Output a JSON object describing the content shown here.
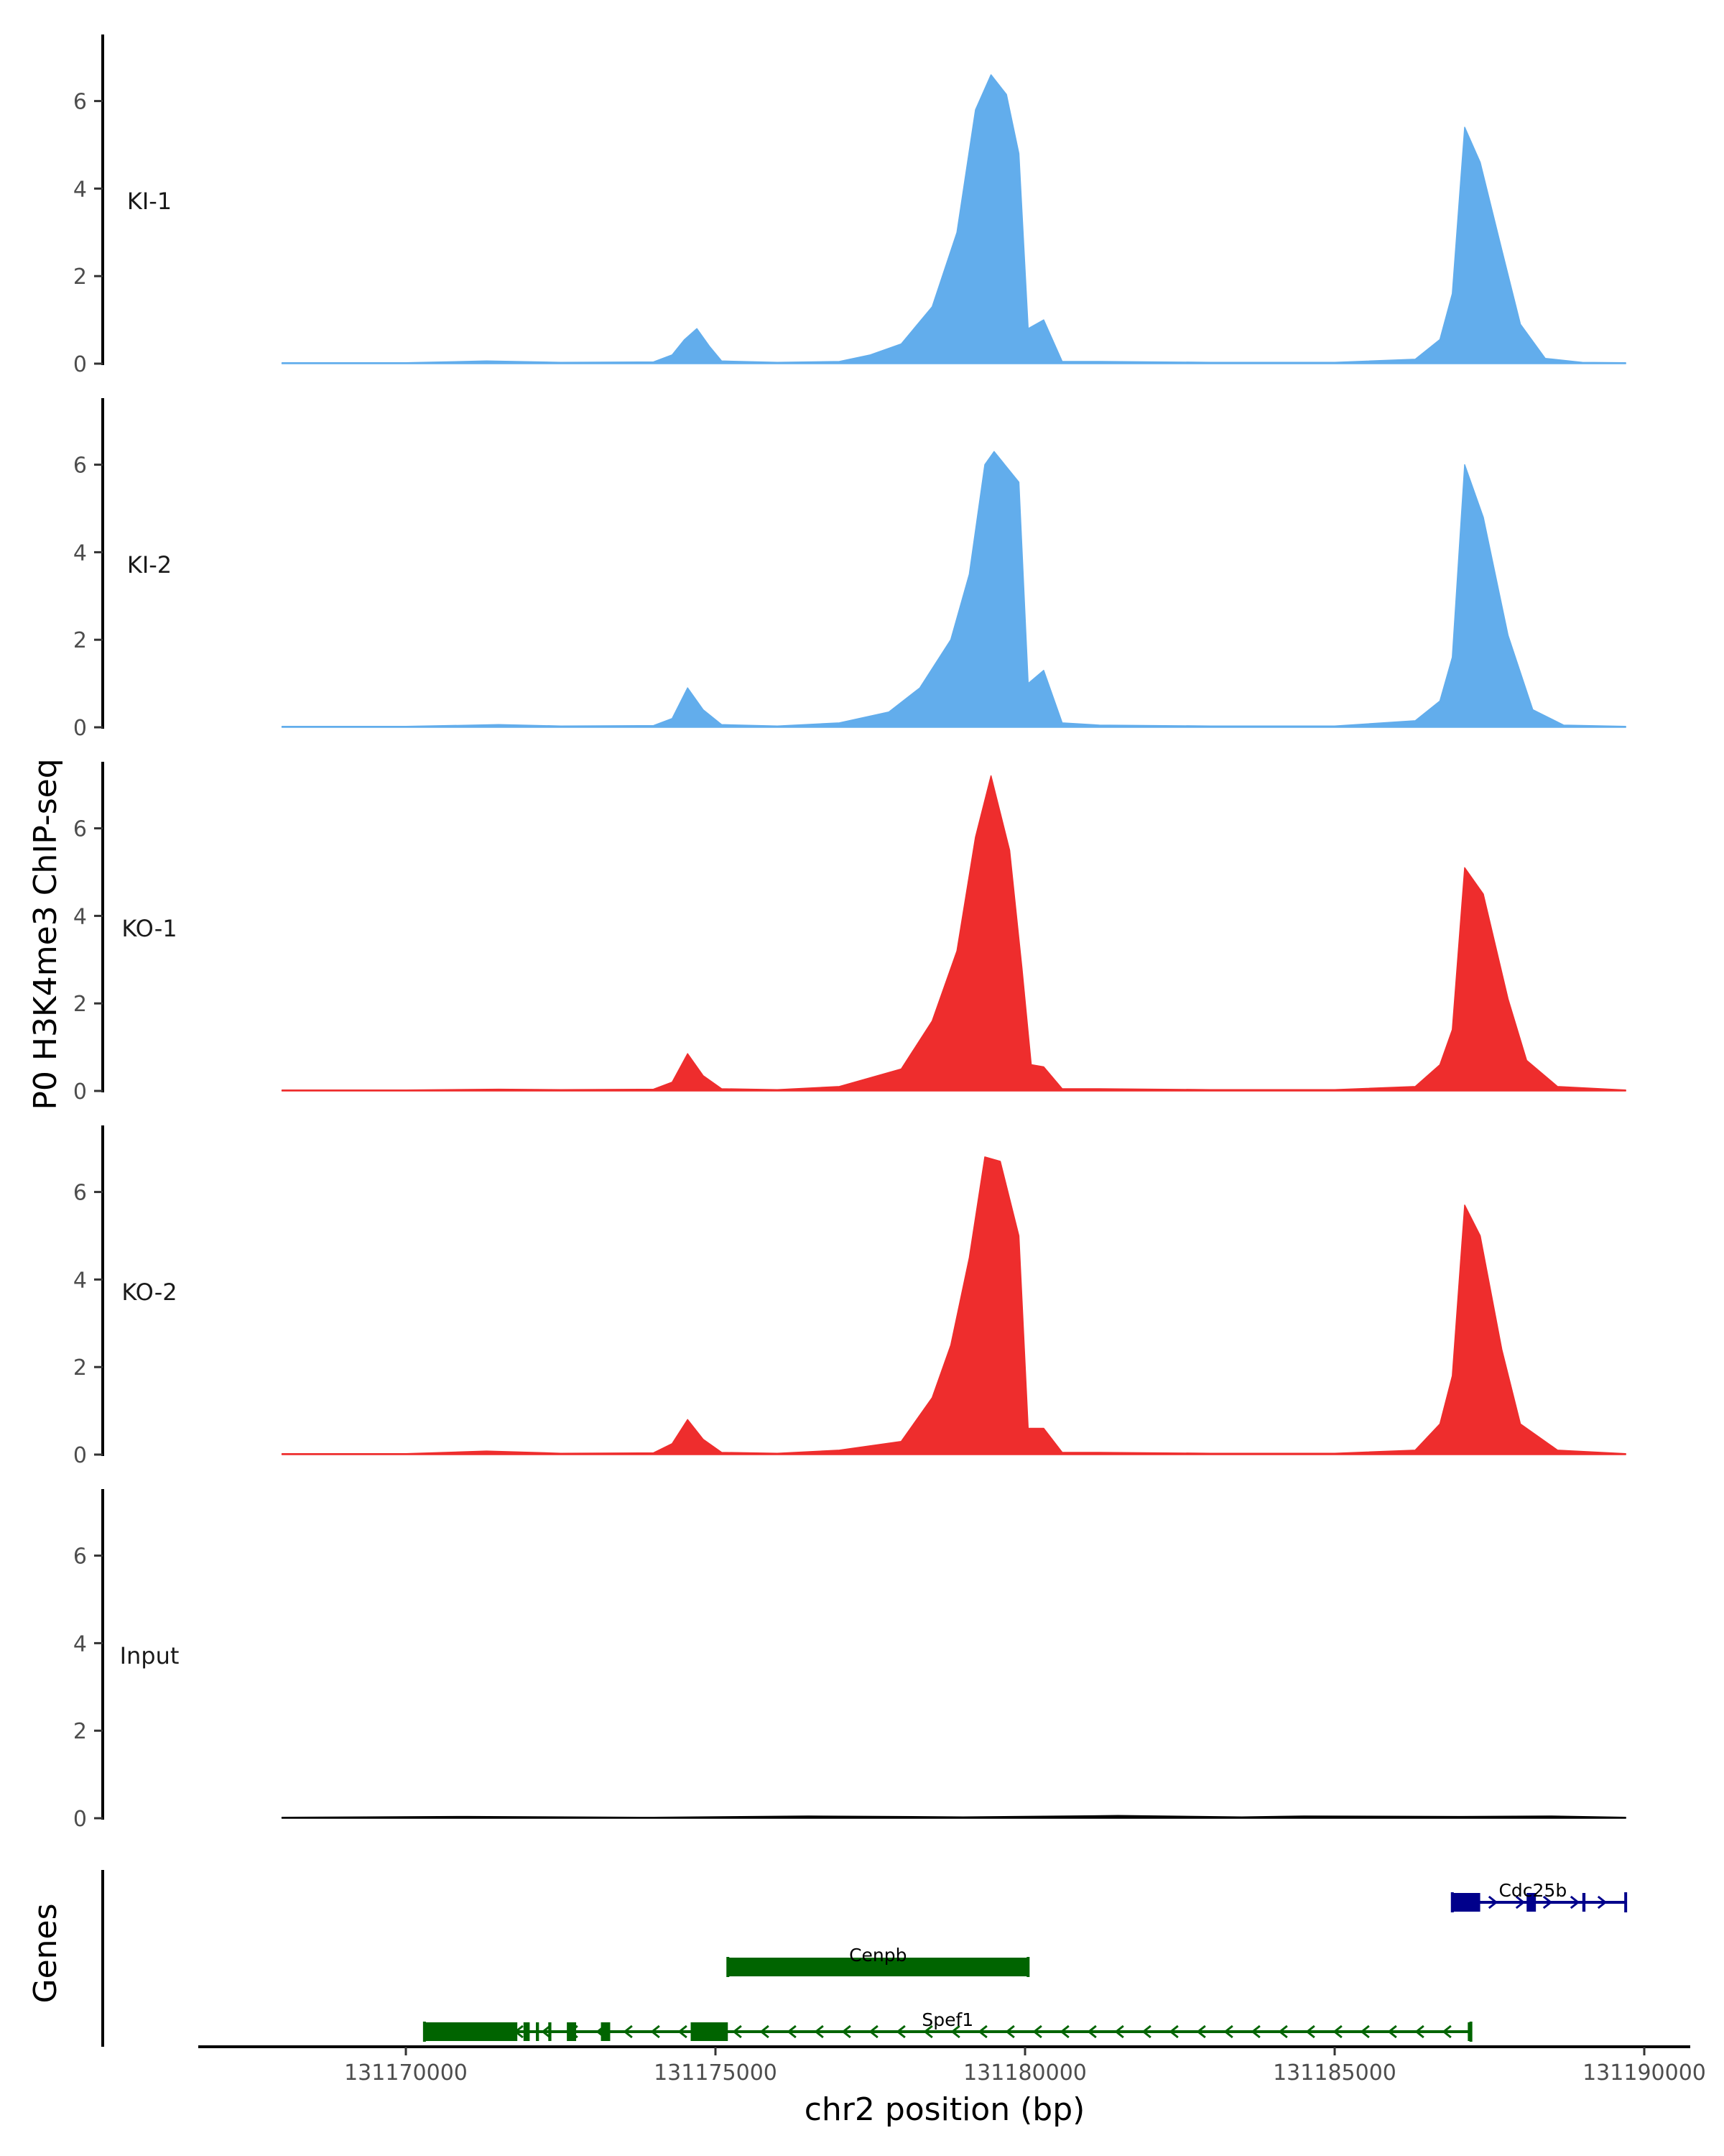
{
  "chart_data": {
    "type": "area",
    "title": "",
    "ylabel": "P0 H3K4me3 ChIP-seq",
    "xlabel": "chr2 position (bp)",
    "genes_label": "Genes",
    "xlim": [
      131166500,
      131190500
    ],
    "ylim": [
      0,
      7.6
    ],
    "yticks": [
      0,
      2,
      4,
      6
    ],
    "xticks": [
      131170000,
      131175000,
      131180000,
      131185000,
      131190000
    ],
    "tracks": [
      {
        "name": "KI-1",
        "color": "#62ADEC",
        "points": [
          [
            131168000,
            0.02
          ],
          [
            131170000,
            0.02
          ],
          [
            131171300,
            0.06
          ],
          [
            131172500,
            0.03
          ],
          [
            131174000,
            0.04
          ],
          [
            131174300,
            0.2
          ],
          [
            131174500,
            0.55
          ],
          [
            131174700,
            0.8
          ],
          [
            131174900,
            0.4
          ],
          [
            131175100,
            0.06
          ],
          [
            131176000,
            0.03
          ],
          [
            131177000,
            0.05
          ],
          [
            131177500,
            0.2
          ],
          [
            131178000,
            0.45
          ],
          [
            131178500,
            1.3
          ],
          [
            131178900,
            3.0
          ],
          [
            131179200,
            5.8
          ],
          [
            131179450,
            6.6
          ],
          [
            131179700,
            6.15
          ],
          [
            131179900,
            4.8
          ],
          [
            131180050,
            0.8
          ],
          [
            131180300,
            1.0
          ],
          [
            131180600,
            0.05
          ],
          [
            131181200,
            0.05
          ],
          [
            131183000,
            0.03
          ],
          [
            131185000,
            0.03
          ],
          [
            131186300,
            0.1
          ],
          [
            131186700,
            0.55
          ],
          [
            131186900,
            1.6
          ],
          [
            131187100,
            5.4
          ],
          [
            131187350,
            4.6
          ],
          [
            131187700,
            2.6
          ],
          [
            131188000,
            0.9
          ],
          [
            131188400,
            0.12
          ],
          [
            131189000,
            0.03
          ],
          [
            131189700,
            0.02
          ]
        ]
      },
      {
        "name": "KI-2",
        "color": "#62ADEC",
        "points": [
          [
            131168000,
            0.02
          ],
          [
            131170000,
            0.02
          ],
          [
            131171500,
            0.06
          ],
          [
            131172500,
            0.03
          ],
          [
            131174000,
            0.04
          ],
          [
            131174300,
            0.2
          ],
          [
            131174550,
            0.9
          ],
          [
            131174800,
            0.4
          ],
          [
            131175100,
            0.06
          ],
          [
            131176000,
            0.03
          ],
          [
            131177000,
            0.1
          ],
          [
            131177800,
            0.35
          ],
          [
            131178300,
            0.9
          ],
          [
            131178800,
            2.0
          ],
          [
            131179100,
            3.5
          ],
          [
            131179350,
            6.0
          ],
          [
            131179500,
            6.3
          ],
          [
            131179900,
            5.6
          ],
          [
            131180050,
            1.0
          ],
          [
            131180300,
            1.3
          ],
          [
            131180600,
            0.1
          ],
          [
            131181200,
            0.05
          ],
          [
            131183000,
            0.03
          ],
          [
            131185000,
            0.03
          ],
          [
            131186300,
            0.15
          ],
          [
            131186700,
            0.6
          ],
          [
            131186900,
            1.6
          ],
          [
            131187100,
            6.0
          ],
          [
            131187400,
            4.8
          ],
          [
            131187800,
            2.1
          ],
          [
            131188200,
            0.4
          ],
          [
            131188700,
            0.05
          ],
          [
            131189700,
            0.02
          ]
        ]
      },
      {
        "name": "KO-1",
        "color": "#EE2D2D",
        "points": [
          [
            131168000,
            0.02
          ],
          [
            131170000,
            0.02
          ],
          [
            131171500,
            0.04
          ],
          [
            131172500,
            0.03
          ],
          [
            131174000,
            0.04
          ],
          [
            131174300,
            0.2
          ],
          [
            131174550,
            0.85
          ],
          [
            131174800,
            0.35
          ],
          [
            131175100,
            0.05
          ],
          [
            131176000,
            0.03
          ],
          [
            131177000,
            0.1
          ],
          [
            131178000,
            0.5
          ],
          [
            131178500,
            1.6
          ],
          [
            131178900,
            3.2
          ],
          [
            131179200,
            5.8
          ],
          [
            131179450,
            7.2
          ],
          [
            131179750,
            5.5
          ],
          [
            131179950,
            2.8
          ],
          [
            131180100,
            0.6
          ],
          [
            131180300,
            0.55
          ],
          [
            131180600,
            0.05
          ],
          [
            131181200,
            0.05
          ],
          [
            131183000,
            0.03
          ],
          [
            131185000,
            0.03
          ],
          [
            131186300,
            0.1
          ],
          [
            131186700,
            0.6
          ],
          [
            131186900,
            1.4
          ],
          [
            131187100,
            5.1
          ],
          [
            131187400,
            4.5
          ],
          [
            131187800,
            2.1
          ],
          [
            131188100,
            0.7
          ],
          [
            131188600,
            0.1
          ],
          [
            131189700,
            0.02
          ]
        ]
      },
      {
        "name": "KO-2",
        "color": "#EE2D2D",
        "points": [
          [
            131168000,
            0.02
          ],
          [
            131170000,
            0.02
          ],
          [
            131171300,
            0.08
          ],
          [
            131172500,
            0.03
          ],
          [
            131174000,
            0.04
          ],
          [
            131174300,
            0.25
          ],
          [
            131174550,
            0.8
          ],
          [
            131174800,
            0.35
          ],
          [
            131175100,
            0.05
          ],
          [
            131176000,
            0.03
          ],
          [
            131177000,
            0.1
          ],
          [
            131178000,
            0.3
          ],
          [
            131178500,
            1.3
          ],
          [
            131178800,
            2.5
          ],
          [
            131179100,
            4.5
          ],
          [
            131179350,
            6.8
          ],
          [
            131179600,
            6.7
          ],
          [
            131179900,
            5.0
          ],
          [
            131180050,
            0.6
          ],
          [
            131180300,
            0.6
          ],
          [
            131180600,
            0.05
          ],
          [
            131181200,
            0.05
          ],
          [
            131183000,
            0.03
          ],
          [
            131185000,
            0.03
          ],
          [
            131186300,
            0.1
          ],
          [
            131186700,
            0.7
          ],
          [
            131186900,
            1.8
          ],
          [
            131187100,
            5.7
          ],
          [
            131187350,
            5.0
          ],
          [
            131187700,
            2.4
          ],
          [
            131188000,
            0.7
          ],
          [
            131188600,
            0.1
          ],
          [
            131189700,
            0.02
          ]
        ]
      },
      {
        "name": "Input",
        "color": "#000000",
        "points": [
          [
            131168000,
            0.02
          ],
          [
            131171000,
            0.04
          ],
          [
            131174000,
            0.02
          ],
          [
            131176500,
            0.05
          ],
          [
            131179000,
            0.03
          ],
          [
            131181500,
            0.06
          ],
          [
            131183500,
            0.03
          ],
          [
            131184500,
            0.05
          ],
          [
            131187000,
            0.04
          ],
          [
            131188500,
            0.05
          ],
          [
            131189700,
            0.02
          ]
        ]
      }
    ],
    "genes": [
      {
        "name": "Cdc25b",
        "color": "#00008B",
        "strand": "+",
        "row": 1,
        "start": 131186900,
        "end": 131189700,
        "exons": [
          [
            131186900,
            131187350
          ],
          [
            131188100,
            131188250
          ],
          [
            131189000,
            131189050
          ]
        ]
      },
      {
        "name": "Cenpb",
        "color": "#006400",
        "strand": "-",
        "row": 2,
        "start": 131175200,
        "end": 131180050,
        "exons": [
          [
            131175200,
            131180050
          ]
        ]
      },
      {
        "name": "Spef1",
        "color": "#006400",
        "strand": "-",
        "row": 3,
        "start": 131170300,
        "end": 131187200,
        "exons": [
          [
            131170300,
            131171800
          ],
          [
            131171900,
            131172000
          ],
          [
            131172100,
            131172150
          ],
          [
            131172300,
            131172350
          ],
          [
            131172600,
            131172750
          ],
          [
            131173150,
            131173300
          ],
          [
            131174600,
            131175200
          ],
          [
            131187150,
            131187200
          ]
        ]
      }
    ]
  }
}
